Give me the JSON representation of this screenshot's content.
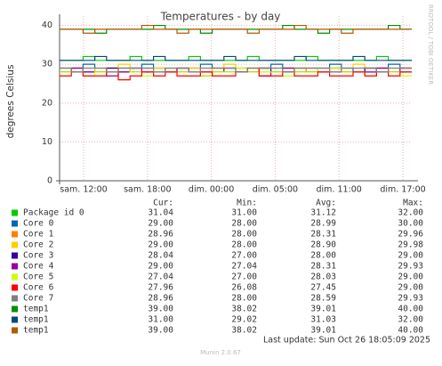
{
  "chart_data": {
    "type": "line",
    "title": "Temperatures - by day",
    "y_label": "degrees Celsius",
    "side_text": "RRDTOOL / TOBI OETIKER",
    "xtick_labels": [
      "sam. 12:00",
      "sam. 18:00",
      "dim. 00:00",
      "dim. 05:00",
      "dim. 11:00",
      "dim. 17:00"
    ],
    "ylim": [
      0,
      41.5
    ],
    "yticks": [
      0,
      10,
      20,
      30,
      40
    ],
    "grid": true,
    "stat_headers": [
      "Cur:",
      "Min:",
      "Avg:",
      "Max:"
    ],
    "series": [
      {
        "name": "Package id 0",
        "color": "#00cc00",
        "stats": [
          "31.04",
          "31.00",
          "31.12",
          "32.00"
        ],
        "values": [
          31,
          31,
          32,
          31,
          31,
          31,
          32,
          31,
          31,
          31,
          31,
          32,
          31,
          31,
          31,
          31,
          32,
          31,
          31,
          31,
          31,
          32,
          31,
          31,
          31,
          31,
          31,
          32,
          31,
          31
        ]
      },
      {
        "name": "Core 0",
        "color": "#0066b3",
        "stats": [
          "29.00",
          "28.00",
          "28.99",
          "30.00"
        ],
        "values": [
          29,
          29,
          30,
          28,
          29,
          29,
          29,
          30,
          29,
          28,
          29,
          29,
          30,
          29,
          29,
          29,
          28,
          29,
          30,
          29,
          29,
          29,
          29,
          30,
          29,
          28,
          29,
          29,
          30,
          29
        ]
      },
      {
        "name": "Core 1",
        "color": "#ff8000",
        "stats": [
          "28.96",
          "28.00",
          "28.31",
          "29.96"
        ],
        "values": [
          28,
          29,
          28,
          28,
          29,
          28,
          28,
          29,
          28,
          28,
          28,
          29,
          28,
          29,
          28,
          28,
          28,
          29,
          28,
          28,
          29,
          28,
          28,
          29,
          28,
          28,
          28,
          29,
          28,
          29
        ]
      },
      {
        "name": "Core 2",
        "color": "#ffcc00",
        "stats": [
          "29.00",
          "28.00",
          "28.90",
          "29.98"
        ],
        "values": [
          29,
          29,
          28,
          29,
          29,
          30,
          29,
          28,
          29,
          29,
          29,
          29,
          28,
          29,
          30,
          29,
          29,
          28,
          29,
          29,
          29,
          29,
          28,
          29,
          29,
          30,
          29,
          29,
          28,
          29
        ]
      },
      {
        "name": "Core 3",
        "color": "#330099",
        "stats": [
          "28.04",
          "27.00",
          "28.00",
          "29.00"
        ],
        "values": [
          28,
          28,
          28,
          28,
          29,
          28,
          28,
          28,
          28,
          28,
          28,
          28,
          27,
          28,
          28,
          28,
          28,
          29,
          28,
          28,
          28,
          28,
          28,
          28,
          28,
          28,
          29,
          28,
          28,
          28
        ]
      },
      {
        "name": "Core 4",
        "color": "#990099",
        "stats": [
          "29.00",
          "27.04",
          "28.31",
          "29.93"
        ],
        "values": [
          28,
          29,
          28,
          28,
          27,
          28,
          29,
          28,
          28,
          28,
          29,
          28,
          28,
          28,
          29,
          28,
          28,
          27,
          28,
          29,
          28,
          28,
          28,
          29,
          28,
          28,
          28,
          29,
          28,
          29
        ]
      },
      {
        "name": "Core 5",
        "color": "#ccff00",
        "stats": [
          "27.04",
          "27.00",
          "28.03",
          "29.00"
        ],
        "values": [
          28,
          28,
          27,
          28,
          28,
          29,
          28,
          27,
          28,
          28,
          28,
          28,
          27,
          28,
          28,
          29,
          28,
          28,
          28,
          27,
          28,
          28,
          28,
          29,
          28,
          28,
          27,
          28,
          28,
          27
        ]
      },
      {
        "name": "Core 6",
        "color": "#ff0000",
        "stats": [
          "27.96",
          "26.08",
          "27.45",
          "29.00"
        ],
        "values": [
          27,
          28,
          27,
          27,
          28,
          26,
          27,
          28,
          27,
          28,
          27,
          27,
          28,
          27,
          27,
          28,
          29,
          27,
          27,
          28,
          27,
          27,
          28,
          27,
          27,
          28,
          27,
          28,
          27,
          28
        ]
      },
      {
        "name": "Core 7",
        "color": "#808080",
        "stats": [
          "28.96",
          "28.00",
          "28.59",
          "29.93"
        ],
        "values": [
          29,
          28,
          29,
          29,
          28,
          29,
          29,
          29,
          28,
          29,
          29,
          28,
          29,
          29,
          29,
          28,
          29,
          29,
          29,
          28,
          29,
          29,
          29,
          28,
          29,
          29,
          29,
          28,
          29,
          29
        ]
      },
      {
        "name": "temp1",
        "color": "#008f00",
        "stats": [
          "39.00",
          "38.02",
          "39.01",
          "40.00"
        ],
        "values": [
          39,
          39,
          39,
          38,
          39,
          39,
          39,
          39,
          40,
          39,
          39,
          39,
          38,
          39,
          39,
          39,
          39,
          39,
          39,
          40,
          39,
          39,
          38,
          39,
          39,
          39,
          39,
          39,
          40,
          39
        ]
      },
      {
        "name": "temp1",
        "color": "#00487d",
        "stats": [
          "31.00",
          "29.02",
          "31.03",
          "32.00"
        ],
        "values": [
          31,
          31,
          31,
          32,
          31,
          31,
          31,
          31,
          32,
          31,
          31,
          31,
          31,
          31,
          32,
          31,
          31,
          31,
          31,
          31,
          32,
          31,
          31,
          31,
          31,
          32,
          31,
          31,
          31,
          31
        ]
      },
      {
        "name": "temp1",
        "color": "#b35a00",
        "stats": [
          "39.00",
          "38.02",
          "39.01",
          "40.00"
        ],
        "values": [
          39,
          39,
          38,
          39,
          39,
          39,
          39,
          40,
          39,
          39,
          38,
          39,
          39,
          39,
          39,
          39,
          38,
          39,
          39,
          39,
          40,
          39,
          39,
          39,
          38,
          39,
          39,
          39,
          39,
          39
        ]
      }
    ],
    "last_update": "Last update: Sun Oct 26 18:05:09 2025",
    "footer": "Munin 2.0.67"
  }
}
